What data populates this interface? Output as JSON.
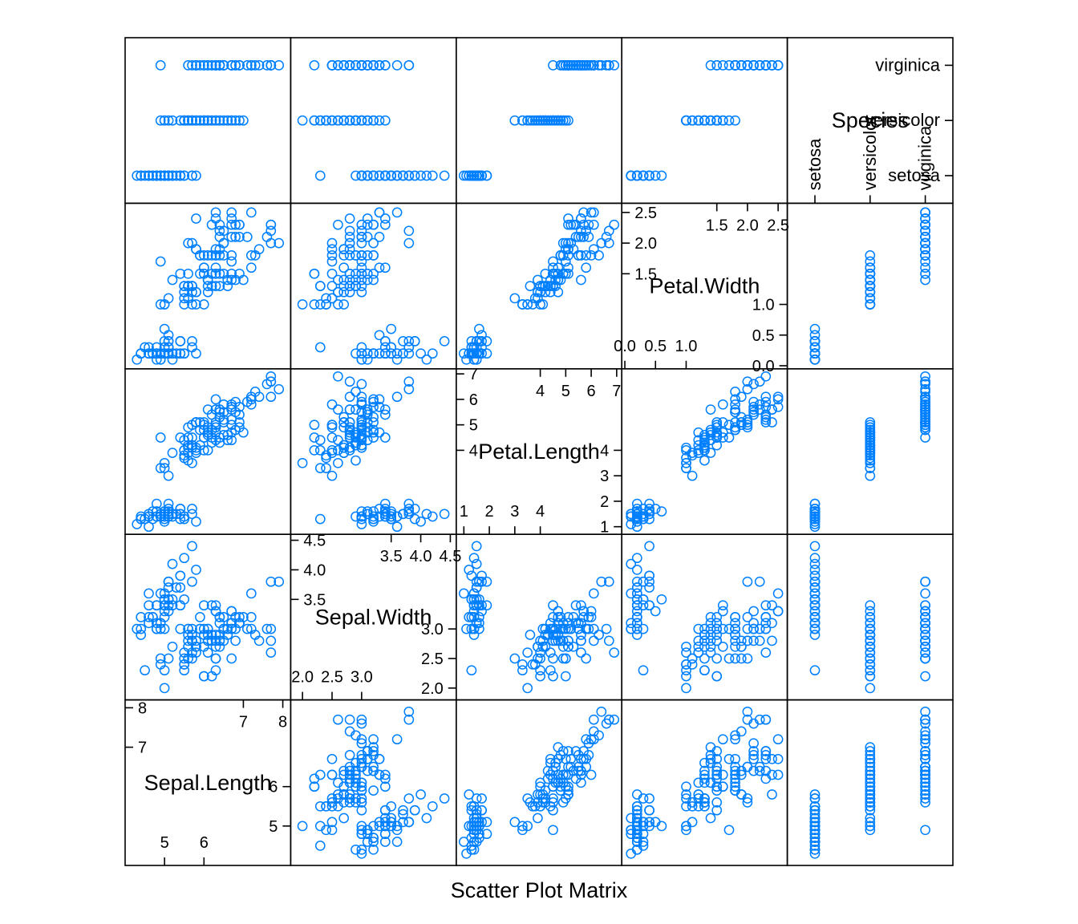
{
  "chart_data": {
    "type": "scatter",
    "title": "",
    "xlabel": "Scatter Plot Matrix",
    "ylabel": "",
    "point_color": "#0080ff",
    "grid": false,
    "legend": "none",
    "variables": [
      {
        "name": "Sepal.Length",
        "label": "Sepal.Length",
        "range": [
          4.0,
          8.2
        ],
        "ticks_low": [
          "5",
          "6"
        ],
        "ticks_high": [
          "7",
          "8"
        ],
        "tick_low_values": [
          5,
          6
        ],
        "tick_high_values": [
          7,
          8
        ]
      },
      {
        "name": "Sepal.Width",
        "label": "Sepal.Width",
        "range": [
          1.8,
          4.6
        ],
        "ticks_low": [
          "2.0",
          "2.5",
          "3.0"
        ],
        "ticks_high": [
          "3.5",
          "4.0",
          "4.5"
        ],
        "tick_low_values": [
          2.0,
          2.5,
          3.0
        ],
        "tick_high_values": [
          3.5,
          4.0,
          4.5
        ]
      },
      {
        "name": "Petal.Length",
        "label": "Petal.Length",
        "range": [
          0.7,
          7.2
        ],
        "ticks_low": [
          "1",
          "2",
          "3",
          "4"
        ],
        "ticks_high": [
          "4",
          "5",
          "6",
          "7"
        ],
        "tick_low_values": [
          1,
          2,
          3,
          4
        ],
        "tick_high_values": [
          4,
          5,
          6,
          7
        ]
      },
      {
        "name": "Petal.Width",
        "label": "Petal.Width",
        "range": [
          -0.05,
          2.65
        ],
        "ticks_low": [
          "0.0",
          "0.5",
          "1.0"
        ],
        "ticks_high": [
          "1.5",
          "2.0",
          "2.5"
        ],
        "tick_low_values": [
          0.0,
          0.5,
          1.0
        ],
        "tick_high_values": [
          1.5,
          2.0,
          2.5
        ]
      },
      {
        "name": "Species",
        "label": "Species",
        "range": [
          0.5,
          3.5
        ],
        "levels": [
          "setosa",
          "versicolor",
          "virginica"
        ]
      }
    ],
    "species_labels": [
      "setosa",
      "versicolor",
      "virginica"
    ],
    "observations": {
      "Sepal.Length": [
        5.1,
        4.9,
        4.7,
        4.6,
        5.0,
        5.4,
        4.6,
        5.0,
        4.4,
        4.9,
        5.4,
        4.8,
        4.8,
        4.3,
        5.8,
        5.7,
        5.4,
        5.1,
        5.7,
        5.1,
        5.4,
        5.1,
        4.6,
        5.1,
        4.8,
        5.0,
        5.0,
        5.2,
        5.2,
        4.7,
        4.8,
        5.4,
        5.2,
        5.5,
        4.9,
        5.0,
        5.5,
        4.9,
        4.4,
        5.1,
        5.0,
        4.5,
        4.4,
        5.0,
        5.1,
        4.8,
        5.1,
        4.6,
        5.3,
        5.0,
        7.0,
        6.4,
        6.9,
        5.5,
        6.5,
        5.7,
        6.3,
        4.9,
        6.6,
        5.2,
        5.0,
        5.9,
        6.0,
        6.1,
        5.6,
        6.7,
        5.6,
        5.8,
        6.2,
        5.6,
        5.9,
        6.1,
        6.3,
        6.1,
        6.4,
        6.6,
        6.8,
        6.7,
        6.0,
        5.7,
        5.5,
        5.5,
        5.8,
        6.0,
        5.4,
        6.0,
        6.7,
        6.3,
        5.6,
        5.5,
        5.5,
        6.1,
        5.8,
        5.0,
        5.6,
        5.7,
        5.7,
        6.2,
        5.1,
        5.7,
        6.3,
        5.8,
        7.1,
        6.3,
        6.5,
        7.6,
        4.9,
        7.3,
        6.7,
        7.2,
        6.5,
        6.4,
        6.8,
        5.7,
        5.8,
        6.4,
        6.5,
        7.7,
        7.7,
        6.0,
        6.9,
        5.6,
        7.7,
        6.3,
        6.7,
        7.2,
        6.2,
        6.1,
        6.4,
        7.2,
        7.4,
        7.9,
        6.4,
        6.3,
        6.1,
        7.7,
        6.3,
        6.4,
        6.0,
        6.9,
        6.7,
        6.9,
        5.8,
        6.8,
        6.7,
        6.7,
        6.3,
        6.5,
        6.2,
        5.9
      ],
      "Sepal.Width": [
        3.5,
        3.0,
        3.2,
        3.1,
        3.6,
        3.9,
        3.4,
        3.4,
        2.9,
        3.1,
        3.7,
        3.4,
        3.0,
        3.0,
        4.0,
        4.4,
        3.9,
        3.5,
        3.8,
        3.8,
        3.4,
        3.7,
        3.6,
        3.3,
        3.4,
        3.0,
        3.4,
        3.5,
        3.4,
        3.2,
        3.1,
        3.4,
        4.1,
        4.2,
        3.1,
        3.2,
        3.5,
        3.6,
        3.0,
        3.4,
        3.5,
        2.3,
        3.2,
        3.5,
        3.8,
        3.0,
        3.8,
        3.2,
        3.7,
        3.3,
        3.2,
        3.2,
        3.1,
        2.3,
        2.8,
        2.8,
        3.3,
        2.4,
        2.9,
        2.7,
        2.0,
        3.0,
        2.2,
        2.9,
        2.9,
        3.1,
        3.0,
        2.7,
        2.2,
        2.5,
        3.2,
        2.8,
        2.5,
        2.8,
        2.9,
        3.0,
        2.8,
        3.0,
        2.9,
        2.6,
        2.4,
        2.4,
        2.7,
        2.7,
        3.0,
        3.4,
        3.1,
        2.3,
        3.0,
        2.5,
        2.6,
        3.0,
        2.6,
        2.3,
        2.7,
        3.0,
        2.9,
        2.9,
        2.5,
        2.8,
        3.3,
        2.7,
        3.0,
        2.9,
        3.0,
        3.0,
        2.5,
        2.9,
        2.5,
        3.6,
        3.2,
        2.7,
        3.0,
        2.5,
        2.8,
        3.2,
        3.0,
        3.8,
        2.6,
        2.2,
        3.2,
        2.8,
        2.8,
        2.7,
        3.3,
        3.2,
        2.8,
        3.0,
        2.8,
        3.0,
        2.8,
        3.8,
        2.8,
        2.8,
        2.6,
        3.0,
        3.4,
        3.1,
        3.0,
        3.1,
        3.1,
        3.1,
        2.7,
        3.2,
        3.3,
        3.0,
        2.5,
        3.0,
        3.4,
        3.0
      ],
      "Petal.Length": [
        1.4,
        1.4,
        1.3,
        1.5,
        1.4,
        1.7,
        1.4,
        1.5,
        1.4,
        1.5,
        1.5,
        1.6,
        1.4,
        1.1,
        1.2,
        1.5,
        1.3,
        1.4,
        1.7,
        1.5,
        1.7,
        1.5,
        1.0,
        1.7,
        1.9,
        1.6,
        1.6,
        1.5,
        1.4,
        1.6,
        1.6,
        1.5,
        1.5,
        1.4,
        1.5,
        1.2,
        1.3,
        1.4,
        1.3,
        1.5,
        1.3,
        1.3,
        1.3,
        1.6,
        1.9,
        1.4,
        1.6,
        1.4,
        1.5,
        1.4,
        4.7,
        4.5,
        4.9,
        4.0,
        4.6,
        4.5,
        4.7,
        3.3,
        4.6,
        3.9,
        3.5,
        4.2,
        4.0,
        4.7,
        3.6,
        4.4,
        4.5,
        4.1,
        4.5,
        3.9,
        4.8,
        4.0,
        4.9,
        4.7,
        4.3,
        4.4,
        4.8,
        5.0,
        4.5,
        3.5,
        3.8,
        3.7,
        3.9,
        5.1,
        4.5,
        4.5,
        4.7,
        4.4,
        4.1,
        4.0,
        4.4,
        4.6,
        4.0,
        3.3,
        4.2,
        4.2,
        4.2,
        4.3,
        3.0,
        4.1,
        6.0,
        5.1,
        5.9,
        5.6,
        5.8,
        6.6,
        4.5,
        6.3,
        5.8,
        6.1,
        5.1,
        5.3,
        5.5,
        5.0,
        5.1,
        5.3,
        5.5,
        6.7,
        6.9,
        5.0,
        5.7,
        4.9,
        6.7,
        4.9,
        5.7,
        6.0,
        4.8,
        4.9,
        5.6,
        5.8,
        6.1,
        6.4,
        5.6,
        5.1,
        5.6,
        6.1,
        5.6,
        5.5,
        4.8,
        5.4,
        5.6,
        5.1,
        5.1,
        5.9,
        5.7,
        5.2,
        5.0,
        5.2,
        5.4,
        5.1
      ],
      "Petal.Width": [
        0.2,
        0.2,
        0.2,
        0.2,
        0.2,
        0.4,
        0.3,
        0.2,
        0.2,
        0.1,
        0.2,
        0.2,
        0.1,
        0.1,
        0.2,
        0.4,
        0.4,
        0.3,
        0.3,
        0.3,
        0.2,
        0.4,
        0.2,
        0.5,
        0.2,
        0.2,
        0.4,
        0.2,
        0.2,
        0.2,
        0.2,
        0.4,
        0.1,
        0.2,
        0.2,
        0.2,
        0.2,
        0.1,
        0.2,
        0.2,
        0.3,
        0.3,
        0.2,
        0.6,
        0.4,
        0.3,
        0.2,
        0.2,
        0.2,
        0.2,
        1.4,
        1.5,
        1.5,
        1.3,
        1.5,
        1.3,
        1.6,
        1.0,
        1.3,
        1.4,
        1.0,
        1.5,
        1.0,
        1.4,
        1.3,
        1.4,
        1.5,
        1.0,
        1.5,
        1.1,
        1.8,
        1.3,
        1.5,
        1.2,
        1.3,
        1.4,
        1.4,
        1.7,
        1.5,
        1.0,
        1.1,
        1.0,
        1.2,
        1.6,
        1.5,
        1.6,
        1.5,
        1.3,
        1.3,
        1.3,
        1.2,
        1.4,
        1.2,
        1.0,
        1.3,
        1.2,
        1.3,
        1.3,
        1.1,
        1.3,
        2.5,
        1.9,
        2.1,
        1.8,
        2.2,
        2.1,
        1.7,
        1.8,
        1.8,
        2.5,
        2.0,
        1.9,
        2.1,
        2.0,
        2.4,
        2.3,
        1.8,
        2.2,
        2.3,
        1.5,
        2.3,
        2.0,
        2.0,
        1.8,
        2.1,
        1.8,
        1.8,
        1.8,
        2.1,
        1.6,
        1.9,
        2.0,
        2.2,
        1.5,
        1.4,
        2.3,
        2.4,
        1.8,
        1.8,
        2.1,
        2.4,
        2.3,
        1.9,
        2.3,
        2.5,
        2.3,
        1.9,
        2.0,
        2.3,
        1.8
      ],
      "Species": [
        1,
        1,
        1,
        1,
        1,
        1,
        1,
        1,
        1,
        1,
        1,
        1,
        1,
        1,
        1,
        1,
        1,
        1,
        1,
        1,
        1,
        1,
        1,
        1,
        1,
        1,
        1,
        1,
        1,
        1,
        1,
        1,
        1,
        1,
        1,
        1,
        1,
        1,
        1,
        1,
        1,
        1,
        1,
        1,
        1,
        1,
        1,
        1,
        1,
        1,
        2,
        2,
        2,
        2,
        2,
        2,
        2,
        2,
        2,
        2,
        2,
        2,
        2,
        2,
        2,
        2,
        2,
        2,
        2,
        2,
        2,
        2,
        2,
        2,
        2,
        2,
        2,
        2,
        2,
        2,
        2,
        2,
        2,
        2,
        2,
        2,
        2,
        2,
        2,
        2,
        2,
        2,
        2,
        2,
        2,
        2,
        2,
        2,
        2,
        2,
        3,
        3,
        3,
        3,
        3,
        3,
        3,
        3,
        3,
        3,
        3,
        3,
        3,
        3,
        3,
        3,
        3,
        3,
        3,
        3,
        3,
        3,
        3,
        3,
        3,
        3,
        3,
        3,
        3,
        3,
        3,
        3,
        3,
        3,
        3,
        3,
        3,
        3,
        3,
        3,
        3,
        3,
        3,
        3,
        3,
        3,
        3,
        3,
        3,
        3
      ]
    }
  }
}
